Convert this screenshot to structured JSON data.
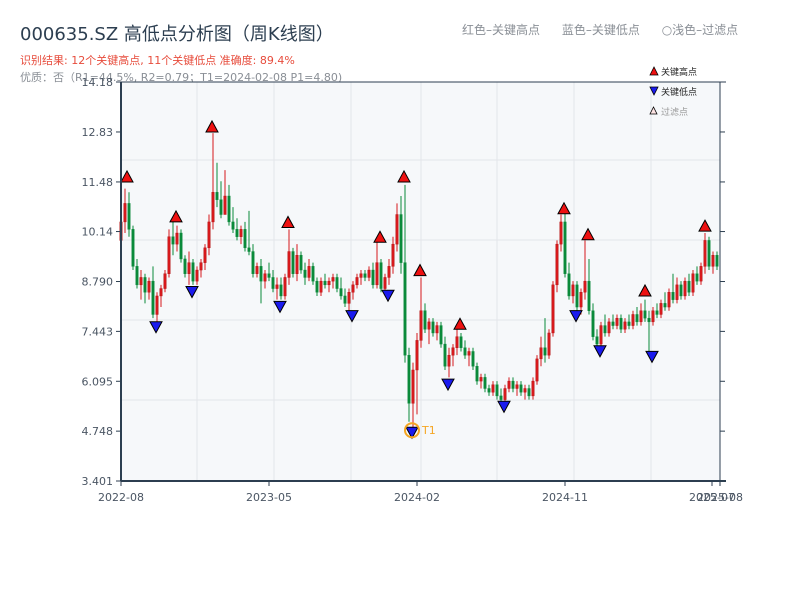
{
  "header": {
    "title": "000635.SZ 高低点分析图（周K线图）",
    "result": "识别结果: 12个关键高点, 11个关键低点  准确度: 89.4%",
    "quality": "优质：否（R1=44.5%, R2=0.79；T1=2024-02-08 P1=4.80)"
  },
  "top_legend": {
    "red": "红色–关键高点",
    "blue": "蓝色–关键低点",
    "light": "○浅色–过滤点"
  },
  "legend": {
    "high": "关键高点",
    "low": "关键低点",
    "filtered": "过滤点"
  },
  "colors": {
    "up": "#d7191c",
    "down": "#0a8a3a",
    "high_marker": "#ee1111",
    "low_marker": "#1a1aee",
    "t1_ring": "#f5a623",
    "plot_bg": "#f6f8fa",
    "axis": "#2c3e50",
    "grid": "#e3e6ea"
  },
  "chart_data": {
    "type": "candlestick",
    "title": "000635.SZ 高低点分析图（周K线图）",
    "xlabel": "",
    "ylabel": "",
    "ylim": [
      3.401,
      14.18
    ],
    "y_ticks": [
      "3.401",
      "4.748",
      "6.095",
      "7.443",
      "8.790",
      "10.14",
      "11.48",
      "12.83",
      "14.18"
    ],
    "x_ticks": [
      {
        "label": "2022-08",
        "x": 121
      },
      {
        "label": "2023-05",
        "x": 269
      },
      {
        "label": "2024-02",
        "x": 417
      },
      {
        "label": "2024-11",
        "x": 565
      },
      {
        "label": "2025-07",
        "x": 712
      },
      {
        "label": "2025-08",
        "x": 720
      }
    ],
    "grid": true,
    "legend_position": "upper right",
    "annotation": {
      "label": "T1",
      "date": "2024-02-08",
      "price": 4.8
    },
    "key_highs": [
      {
        "x": 127,
        "price": 11.48
      },
      {
        "x": 176,
        "price": 10.4
      },
      {
        "x": 212,
        "price": 12.83
      },
      {
        "x": 288,
        "price": 10.25
      },
      {
        "x": 380,
        "price": 9.85
      },
      {
        "x": 404,
        "price": 11.48
      },
      {
        "x": 420,
        "price": 8.95
      },
      {
        "x": 460,
        "price": 7.5
      },
      {
        "x": 564,
        "price": 10.62
      },
      {
        "x": 588,
        "price": 9.92
      },
      {
        "x": 645,
        "price": 8.4
      },
      {
        "x": 705,
        "price": 10.15
      }
    ],
    "key_lows": [
      {
        "x": 156,
        "price": 7.65
      },
      {
        "x": 192,
        "price": 8.6
      },
      {
        "x": 280,
        "price": 8.2
      },
      {
        "x": 352,
        "price": 7.95
      },
      {
        "x": 388,
        "price": 8.5
      },
      {
        "x": 412,
        "price": 4.8
      },
      {
        "x": 448,
        "price": 6.1
      },
      {
        "x": 504,
        "price": 5.5
      },
      {
        "x": 576,
        "price": 7.95
      },
      {
        "x": 600,
        "price": 7.0
      },
      {
        "x": 652,
        "price": 6.85
      }
    ],
    "candles": [
      [
        121,
        9.9,
        10.5,
        9.7,
        10.4
      ],
      [
        125,
        10.4,
        11.3,
        10.1,
        10.9
      ],
      [
        129,
        10.9,
        11.2,
        10.0,
        10.2
      ],
      [
        133,
        10.2,
        10.3,
        9.1,
        9.2
      ],
      [
        137,
        9.2,
        9.4,
        8.6,
        8.7
      ],
      [
        141,
        8.7,
        9.1,
        8.3,
        8.9
      ],
      [
        145,
        8.9,
        9.0,
        8.2,
        8.5
      ],
      [
        149,
        8.5,
        8.9,
        8.3,
        8.8
      ],
      [
        153,
        8.8,
        9.2,
        7.8,
        7.9
      ],
      [
        157,
        7.9,
        8.5,
        7.7,
        8.4
      ],
      [
        161,
        8.4,
        8.7,
        8.1,
        8.6
      ],
      [
        165,
        8.6,
        9.1,
        8.5,
        9.0
      ],
      [
        169,
        9.0,
        10.2,
        8.9,
        10.0
      ],
      [
        173,
        10.0,
        10.4,
        9.5,
        9.8
      ],
      [
        177,
        9.8,
        10.3,
        9.6,
        10.1
      ],
      [
        181,
        10.1,
        10.2,
        9.3,
        9.4
      ],
      [
        185,
        9.4,
        9.5,
        8.9,
        9.0
      ],
      [
        189,
        9.0,
        9.6,
        8.7,
        9.3
      ],
      [
        193,
        9.3,
        9.4,
        8.7,
        8.8
      ],
      [
        197,
        8.8,
        9.2,
        8.7,
        9.1
      ],
      [
        201,
        9.1,
        9.4,
        8.9,
        9.3
      ],
      [
        205,
        9.3,
        9.8,
        9.1,
        9.7
      ],
      [
        209,
        9.7,
        10.6,
        9.5,
        10.4
      ],
      [
        213,
        10.4,
        12.8,
        10.2,
        11.2
      ],
      [
        217,
        11.2,
        12.0,
        10.8,
        11.0
      ],
      [
        221,
        11.0,
        11.5,
        10.5,
        10.6
      ],
      [
        225,
        10.6,
        11.8,
        10.6,
        11.1
      ],
      [
        229,
        11.1,
        11.4,
        10.3,
        10.4
      ],
      [
        233,
        10.4,
        10.8,
        10.1,
        10.2
      ],
      [
        237,
        10.2,
        10.5,
        9.9,
        10.0
      ],
      [
        241,
        10.0,
        10.3,
        9.8,
        10.2
      ],
      [
        245,
        10.2,
        10.4,
        9.6,
        9.7
      ],
      [
        249,
        9.7,
        10.7,
        9.5,
        9.6
      ],
      [
        253,
        9.6,
        9.8,
        8.9,
        9.0
      ],
      [
        257,
        9.0,
        9.3,
        8.9,
        9.2
      ],
      [
        261,
        9.2,
        9.4,
        8.2,
        8.8
      ],
      [
        265,
        8.8,
        9.1,
        8.6,
        9.0
      ],
      [
        269,
        9.0,
        9.3,
        8.8,
        8.9
      ],
      [
        273,
        8.9,
        9.1,
        8.5,
        8.6
      ],
      [
        277,
        8.6,
        8.9,
        8.3,
        8.7
      ],
      [
        281,
        8.7,
        8.9,
        8.3,
        8.4
      ],
      [
        285,
        8.4,
        9.0,
        8.3,
        8.9
      ],
      [
        289,
        8.9,
        10.2,
        8.7,
        9.6
      ],
      [
        293,
        9.6,
        9.7,
        8.9,
        9.0
      ],
      [
        297,
        9.0,
        9.8,
        8.8,
        9.5
      ],
      [
        301,
        9.5,
        9.6,
        9.0,
        9.1
      ],
      [
        305,
        9.1,
        9.3,
        8.7,
        8.9
      ],
      [
        309,
        8.9,
        9.4,
        8.8,
        9.2
      ],
      [
        313,
        9.2,
        9.3,
        8.7,
        8.8
      ],
      [
        317,
        8.8,
        8.9,
        8.4,
        8.5
      ],
      [
        321,
        8.5,
        8.9,
        8.4,
        8.8
      ],
      [
        325,
        8.8,
        9.0,
        8.6,
        8.7
      ],
      [
        329,
        8.7,
        8.9,
        8.5,
        8.8
      ],
      [
        333,
        8.8,
        9.0,
        8.6,
        8.9
      ],
      [
        337,
        8.9,
        9.0,
        8.5,
        8.6
      ],
      [
        341,
        8.6,
        8.9,
        8.3,
        8.4
      ],
      [
        345,
        8.4,
        8.6,
        8.1,
        8.2
      ],
      [
        349,
        8.2,
        8.6,
        8.0,
        8.5
      ],
      [
        353,
        8.5,
        8.8,
        8.3,
        8.7
      ],
      [
        357,
        8.7,
        9.0,
        8.6,
        8.9
      ],
      [
        361,
        8.9,
        9.1,
        8.7,
        9.0
      ],
      [
        365,
        9.0,
        9.1,
        8.8,
        8.9
      ],
      [
        369,
        8.9,
        9.2,
        8.8,
        9.1
      ],
      [
        373,
        9.1,
        9.3,
        8.6,
        8.7
      ],
      [
        377,
        8.7,
        9.9,
        8.6,
        9.3
      ],
      [
        381,
        9.3,
        9.4,
        8.5,
        8.6
      ],
      [
        385,
        8.6,
        9.0,
        8.5,
        8.9
      ],
      [
        389,
        8.9,
        9.4,
        8.7,
        9.2
      ],
      [
        393,
        9.2,
        10.0,
        9.0,
        9.8
      ],
      [
        397,
        9.8,
        10.9,
        9.6,
        10.6
      ],
      [
        401,
        10.6,
        11.1,
        9.0,
        9.3
      ],
      [
        405,
        9.3,
        11.4,
        6.6,
        6.8
      ],
      [
        409,
        6.8,
        7.0,
        5.0,
        5.5
      ],
      [
        413,
        5.5,
        6.6,
        4.8,
        6.4
      ],
      [
        417,
        6.4,
        7.4,
        5.2,
        7.2
      ],
      [
        421,
        7.2,
        8.9,
        7.0,
        8.0
      ],
      [
        425,
        8.0,
        8.2,
        7.4,
        7.5
      ],
      [
        429,
        7.5,
        7.8,
        7.1,
        7.7
      ],
      [
        433,
        7.7,
        7.8,
        7.3,
        7.4
      ],
      [
        437,
        7.4,
        7.7,
        7.2,
        7.6
      ],
      [
        441,
        7.6,
        7.7,
        7.0,
        7.1
      ],
      [
        445,
        7.1,
        7.3,
        6.4,
        6.5
      ],
      [
        449,
        6.5,
        7.0,
        6.2,
        6.8
      ],
      [
        453,
        6.8,
        7.1,
        6.5,
        7.0
      ],
      [
        457,
        7.0,
        7.5,
        6.8,
        7.3
      ],
      [
        461,
        7.3,
        7.4,
        6.9,
        7.0
      ],
      [
        465,
        7.0,
        7.2,
        6.7,
        6.8
      ],
      [
        469,
        6.8,
        7.0,
        6.5,
        6.9
      ],
      [
        473,
        6.9,
        7.0,
        6.4,
        6.5
      ],
      [
        477,
        6.5,
        6.6,
        6.0,
        6.1
      ],
      [
        481,
        6.1,
        6.3,
        5.9,
        6.2
      ],
      [
        485,
        6.2,
        6.3,
        5.8,
        5.9
      ],
      [
        489,
        5.9,
        6.0,
        5.7,
        5.8
      ],
      [
        493,
        5.8,
        6.1,
        5.7,
        6.0
      ],
      [
        497,
        6.0,
        6.1,
        5.6,
        5.7
      ],
      [
        501,
        5.7,
        5.9,
        5.5,
        5.6
      ],
      [
        505,
        5.6,
        6.0,
        5.5,
        5.9
      ],
      [
        509,
        5.9,
        6.2,
        5.8,
        6.1
      ],
      [
        513,
        6.1,
        6.2,
        5.8,
        5.9
      ],
      [
        517,
        5.9,
        6.1,
        5.7,
        6.0
      ],
      [
        521,
        6.0,
        6.1,
        5.7,
        5.8
      ],
      [
        525,
        5.8,
        6.0,
        5.6,
        5.9
      ],
      [
        529,
        5.9,
        6.0,
        5.6,
        5.7
      ],
      [
        533,
        5.7,
        6.2,
        5.6,
        6.1
      ],
      [
        537,
        6.1,
        6.8,
        6.0,
        6.7
      ],
      [
        541,
        6.7,
        7.3,
        6.5,
        7.0
      ],
      [
        545,
        7.0,
        7.8,
        6.6,
        6.8
      ],
      [
        549,
        6.8,
        7.5,
        6.7,
        7.4
      ],
      [
        553,
        7.4,
        8.8,
        7.3,
        8.7
      ],
      [
        557,
        8.7,
        9.9,
        8.5,
        9.8
      ],
      [
        561,
        9.8,
        10.6,
        9.6,
        10.4
      ],
      [
        565,
        10.4,
        10.7,
        8.9,
        9.0
      ],
      [
        569,
        9.0,
        9.3,
        8.3,
        8.4
      ],
      [
        573,
        8.4,
        8.8,
        8.2,
        8.7
      ],
      [
        577,
        8.7,
        8.8,
        8.0,
        8.1
      ],
      [
        581,
        8.1,
        8.6,
        7.9,
        8.5
      ],
      [
        585,
        8.5,
        9.9,
        8.3,
        8.8
      ],
      [
        589,
        8.8,
        9.4,
        7.9,
        8.0
      ],
      [
        593,
        8.0,
        8.2,
        7.2,
        7.3
      ],
      [
        597,
        7.3,
        7.5,
        7.0,
        7.1
      ],
      [
        601,
        7.1,
        7.7,
        7.0,
        7.6
      ],
      [
        605,
        7.6,
        7.9,
        7.3,
        7.4
      ],
      [
        609,
        7.4,
        7.8,
        7.3,
        7.7
      ],
      [
        613,
        7.7,
        7.9,
        7.5,
        7.6
      ],
      [
        617,
        7.6,
        7.9,
        7.5,
        7.8
      ],
      [
        621,
        7.8,
        7.9,
        7.4,
        7.5
      ],
      [
        625,
        7.5,
        7.8,
        7.4,
        7.7
      ],
      [
        629,
        7.7,
        7.9,
        7.5,
        7.6
      ],
      [
        633,
        7.6,
        8.0,
        7.5,
        7.9
      ],
      [
        637,
        7.9,
        8.1,
        7.6,
        7.7
      ],
      [
        641,
        7.7,
        8.2,
        7.6,
        8.0
      ],
      [
        645,
        8.0,
        8.3,
        7.7,
        7.8
      ],
      [
        649,
        7.8,
        8.0,
        6.9,
        7.7
      ],
      [
        653,
        7.7,
        8.1,
        7.6,
        8.0
      ],
      [
        657,
        8.0,
        8.2,
        7.8,
        7.9
      ],
      [
        661,
        7.9,
        8.3,
        7.8,
        8.2
      ],
      [
        665,
        8.2,
        8.5,
        8.0,
        8.1
      ],
      [
        669,
        8.1,
        8.6,
        8.0,
        8.5
      ],
      [
        673,
        8.5,
        9.0,
        8.2,
        8.3
      ],
      [
        677,
        8.3,
        8.9,
        8.2,
        8.7
      ],
      [
        681,
        8.7,
        8.8,
        8.3,
        8.4
      ],
      [
        685,
        8.4,
        8.9,
        8.3,
        8.8
      ],
      [
        689,
        8.8,
        9.0,
        8.4,
        8.5
      ],
      [
        693,
        8.5,
        9.1,
        8.4,
        9.0
      ],
      [
        697,
        9.0,
        9.2,
        8.7,
        8.8
      ],
      [
        701,
        8.8,
        9.3,
        8.7,
        9.2
      ],
      [
        705,
        9.2,
        10.1,
        9.0,
        9.9
      ],
      [
        709,
        9.9,
        10.0,
        9.1,
        9.2
      ],
      [
        713,
        9.2,
        9.6,
        9.0,
        9.5
      ],
      [
        717,
        9.5,
        9.6,
        9.1,
        9.2
      ]
    ]
  }
}
